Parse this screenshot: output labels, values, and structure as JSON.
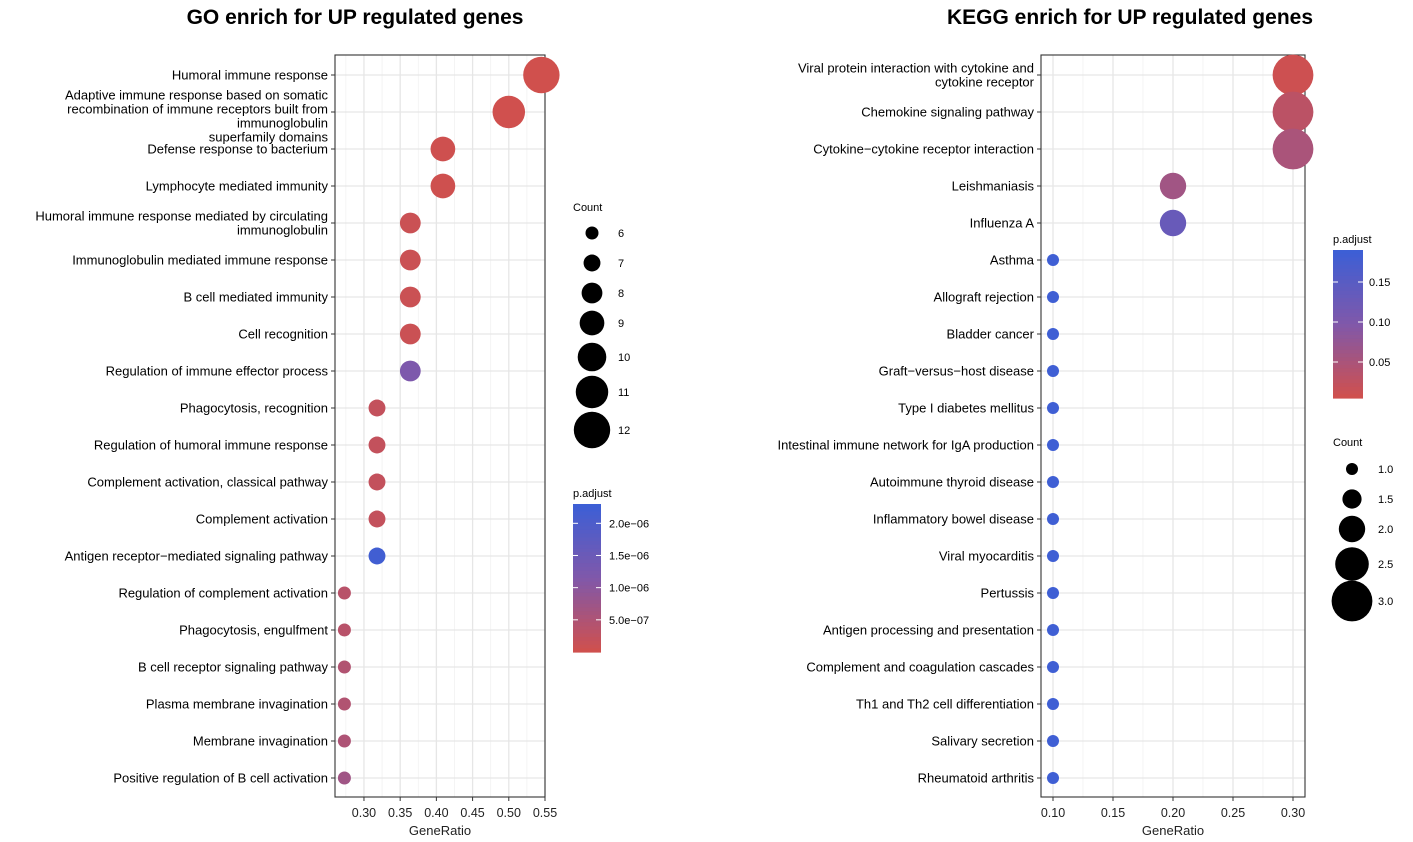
{
  "chart_data": [
    {
      "type": "scatter",
      "title": "GO enrich for UP regulated genes",
      "xlabel": "GeneRatio",
      "ylabel": "",
      "xlim": [
        0.26,
        0.55
      ],
      "xticks": [
        "0.30",
        "0.35",
        "0.40",
        "0.45",
        "0.50",
        "0.55"
      ],
      "grid": true,
      "categories": [
        "Humoral immune response",
        "Adaptive immune response based on somatic\nrecombination of immune receptors built from\nimmunoglobulin\nsuperfamily domains",
        "Defense response to bacterium",
        "Lymphocyte mediated immunity",
        "Humoral immune response mediated by circulating\nimmunoglobulin",
        "Immunoglobulin mediated immune response",
        "B cell mediated immunity",
        "Cell recognition",
        "Regulation of immune effector process",
        "Phagocytosis, recognition",
        "Regulation of humoral immune response",
        "Complement activation, classical pathway",
        "Complement activation",
        "Antigen receptor−mediated signaling pathway",
        "Regulation of complement activation",
        "Phagocytosis, engulfment",
        "B cell receptor signaling pathway",
        "Plasma membrane invagination",
        "Membrane invagination",
        "Positive regulation of B cell activation"
      ],
      "x": [
        0.545,
        0.5,
        0.409,
        0.409,
        0.364,
        0.364,
        0.364,
        0.364,
        0.364,
        0.318,
        0.318,
        0.318,
        0.318,
        0.318,
        0.273,
        0.273,
        0.273,
        0.273,
        0.273,
        0.273
      ],
      "count": [
        12,
        11,
        9,
        9,
        8,
        8,
        8,
        8,
        8,
        7,
        7,
        7,
        7,
        7,
        6,
        6,
        6,
        6,
        6,
        6
      ],
      "p_adjust": [
        1e-08,
        2e-08,
        4e-08,
        4e-08,
        1e-07,
        1e-07,
        1e-07,
        1e-07,
        1.2e-06,
        2e-07,
        2e-07,
        2e-07,
        2e-07,
        2.2e-06,
        3.5e-07,
        3.5e-07,
        4.5e-07,
        4.5e-07,
        5e-07,
        7e-07
      ],
      "legend_count": {
        "title": "Count",
        "values": [
          6,
          7,
          8,
          9,
          10,
          11,
          12
        ],
        "labels": [
          "6",
          "7",
          "8",
          "9",
          "10",
          "11",
          "12"
        ]
      },
      "legend_color": {
        "title": "p.adjust",
        "range": [
          0,
          2.3e-06
        ],
        "ticks": [
          5e-07,
          1e-06,
          1.5e-06,
          2e-06
        ],
        "labels": [
          "5.0e−07",
          "1.0e−06",
          "1.5e−06",
          "2.0e−06"
        ],
        "low_color": "#d1504c",
        "high_color": "#3b5fd6"
      }
    },
    {
      "type": "scatter",
      "title": "KEGG enrich for UP regulated genes",
      "xlabel": "GeneRatio",
      "ylabel": "",
      "xlim": [
        0.09,
        0.31
      ],
      "xticks": [
        "0.10",
        "0.15",
        "0.20",
        "0.25",
        "0.30"
      ],
      "grid": true,
      "categories": [
        "Viral protein interaction with cytokine and\ncytokine receptor",
        "Chemokine signaling pathway",
        "Cytokine−cytokine receptor interaction",
        "Leishmaniasis",
        "Influenza A",
        "Asthma",
        "Allograft rejection",
        "Bladder cancer",
        "Graft−versus−host disease",
        "Type I diabetes mellitus",
        "Intestinal immune network for IgA production",
        "Autoimmune thyroid disease",
        "Inflammatory bowel disease",
        "Viral myocarditis",
        "Pertussis",
        "Antigen processing and presentation",
        "Complement and coagulation cascades",
        "Th1 and Th2 cell differentiation",
        "Salivary secretion",
        "Rheumatoid arthritis"
      ],
      "x": [
        0.3,
        0.3,
        0.3,
        0.2,
        0.2,
        0.1,
        0.1,
        0.1,
        0.1,
        0.1,
        0.1,
        0.1,
        0.1,
        0.1,
        0.1,
        0.1,
        0.1,
        0.1,
        0.1,
        0.1
      ],
      "count": [
        3,
        3,
        3,
        2,
        2,
        1,
        1,
        1,
        1,
        1,
        1,
        1,
        1,
        1,
        1,
        1,
        1,
        1,
        1,
        1
      ],
      "p_adjust": [
        0.01,
        0.03,
        0.05,
        0.06,
        0.13,
        0.185,
        0.185,
        0.185,
        0.185,
        0.185,
        0.185,
        0.185,
        0.185,
        0.185,
        0.185,
        0.185,
        0.185,
        0.185,
        0.185,
        0.185
      ],
      "legend_count": {
        "title": "Count",
        "values": [
          1.0,
          1.5,
          2.0,
          2.5,
          3.0
        ],
        "labels": [
          "1.0",
          "1.5",
          "2.0",
          "2.5",
          "3.0"
        ]
      },
      "legend_color": {
        "title": "p.adjust",
        "range": [
          0.005,
          0.19
        ],
        "ticks": [
          0.05,
          0.1,
          0.15
        ],
        "labels": [
          "0.05",
          "0.10",
          "0.15"
        ],
        "low_color": "#d1504c",
        "high_color": "#3b5fd6"
      }
    }
  ]
}
